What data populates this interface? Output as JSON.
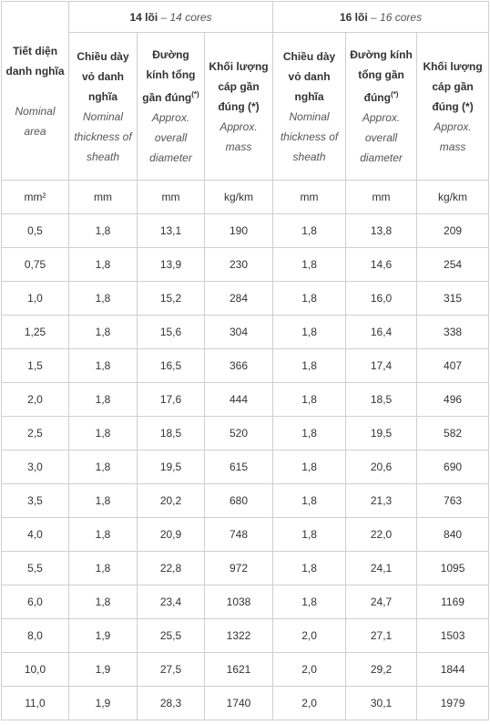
{
  "table": {
    "area_header": {
      "vi": "Tiết diện danh nghĩa",
      "en": "Nominal area"
    },
    "groups": [
      {
        "label": "14 lõi",
        "sub": "– 14 cores",
        "columns": [
          {
            "vi": "Chiều dày vỏ danh nghĩa",
            "en": "Nominal thickness of sheath"
          },
          {
            "vi": "Đường kính tổng gần đúng",
            "sup": "(*)",
            "en": "Approx. overall diameter"
          },
          {
            "vi": "Khối lượng cáp gần đúng (*)",
            "en": "Approx. mass"
          }
        ]
      },
      {
        "label": "16 lõi",
        "sub": "– 16 cores",
        "columns": [
          {
            "vi": "Chiều dày vỏ danh nghĩa",
            "en": "Nominal thickness of sheath"
          },
          {
            "vi": "Đường kính tổng gần đúng",
            "sup": "(*)",
            "en": "Approx. overall diameter"
          },
          {
            "vi": "Khối lượng cáp gần đúng (*)",
            "en": "Approx. mass"
          }
        ]
      }
    ],
    "units": [
      "mm²",
      "mm",
      "mm",
      "kg/km",
      "mm",
      "mm",
      "kg/km"
    ],
    "rows": [
      [
        "0,5",
        "1,8",
        "13,1",
        "190",
        "1,8",
        "13,8",
        "209"
      ],
      [
        "0,75",
        "1,8",
        "13,9",
        "230",
        "1,8",
        "14,6",
        "254"
      ],
      [
        "1,0",
        "1,8",
        "15,2",
        "284",
        "1,8",
        "16,0",
        "315"
      ],
      [
        "1,25",
        "1,8",
        "15,6",
        "304",
        "1,8",
        "16,4",
        "338"
      ],
      [
        "1,5",
        "1,8",
        "16,5",
        "366",
        "1,8",
        "17,4",
        "407"
      ],
      [
        "2,0",
        "1,8",
        "17,6",
        "444",
        "1,8",
        "18,5",
        "496"
      ],
      [
        "2,5",
        "1,8",
        "18,5",
        "520",
        "1,8",
        "19,5",
        "582"
      ],
      [
        "3,0",
        "1,8",
        "19,5",
        "615",
        "1,8",
        "20,6",
        "690"
      ],
      [
        "3,5",
        "1,8",
        "20,2",
        "680",
        "1,8",
        "21,3",
        "763"
      ],
      [
        "4,0",
        "1,8",
        "20,9",
        "748",
        "1,8",
        "22,0",
        "840"
      ],
      [
        "5,5",
        "1,8",
        "22,8",
        "972",
        "1,8",
        "24,1",
        "1095"
      ],
      [
        "6,0",
        "1,8",
        "23,4",
        "1038",
        "1,8",
        "24,7",
        "1169"
      ],
      [
        "8,0",
        "1,9",
        "25,5",
        "1322",
        "2,0",
        "27,1",
        "1503"
      ],
      [
        "10,0",
        "1,9",
        "27,5",
        "1621",
        "2,0",
        "29,2",
        "1844"
      ],
      [
        "11,0",
        "1,9",
        "28,3",
        "1740",
        "2,0",
        "30,1",
        "1979"
      ]
    ]
  }
}
